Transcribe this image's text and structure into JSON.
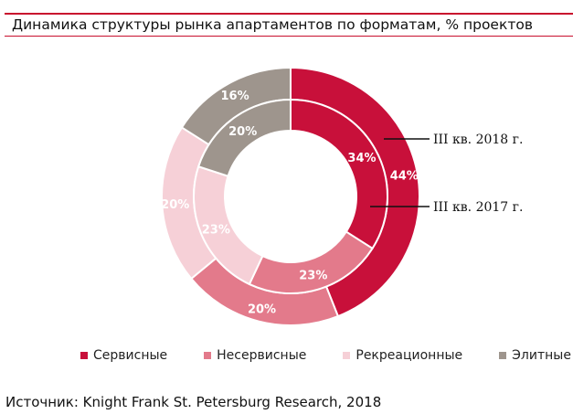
{
  "title": "Динамика структуры рынка апартаментов по форматам, % проектов",
  "source": "Источник: Knight Frank St. Petersburg Research, 2018",
  "chart_data": {
    "type": "donut",
    "title": "Динамика структуры рынка апартаментов по форматам, % проектов",
    "categories": [
      "Сервисные",
      "Несервисные",
      "Рекреационные",
      "Элитные"
    ],
    "colors": [
      "#c8103a",
      "#e37a8b",
      "#f6d0d7",
      "#9e958d"
    ],
    "series": [
      {
        "name": "III кв. 2018 г.",
        "ring": "outer",
        "values": [
          44,
          20,
          20,
          16
        ]
      },
      {
        "name": "III кв. 2017 г.",
        "ring": "inner",
        "values": [
          34,
          23,
          23,
          20
        ]
      }
    ],
    "legend": "bottom"
  }
}
